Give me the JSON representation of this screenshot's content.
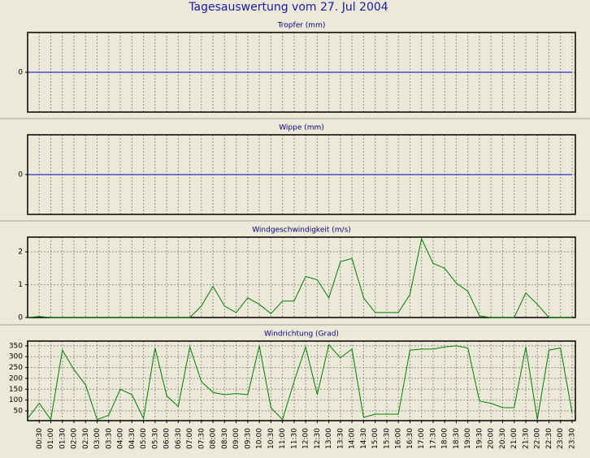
{
  "title": "Tagesauswertung vom 27. Jul 2004",
  "chart_data": [
    {
      "type": "line",
      "title": "Tropfer (mm)",
      "color": "#0000c0",
      "grid": true,
      "ylim": [
        -1,
        1
      ],
      "yticks": [
        0
      ],
      "values": [
        0,
        0,
        0,
        0,
        0,
        0,
        0,
        0,
        0,
        0,
        0,
        0,
        0,
        0,
        0,
        0,
        0,
        0,
        0,
        0,
        0,
        0,
        0,
        0,
        0,
        0,
        0,
        0,
        0,
        0,
        0,
        0,
        0,
        0,
        0,
        0,
        0,
        0,
        0,
        0,
        0,
        0,
        0,
        0,
        0,
        0,
        0,
        0
      ]
    },
    {
      "type": "line",
      "title": "Wippe (mm)",
      "color": "#0000c0",
      "grid": true,
      "ylim": [
        -1,
        1
      ],
      "yticks": [
        0
      ],
      "values": [
        0,
        0,
        0,
        0,
        0,
        0,
        0,
        0,
        0,
        0,
        0,
        0,
        0,
        0,
        0,
        0,
        0,
        0,
        0,
        0,
        0,
        0,
        0,
        0,
        0,
        0,
        0,
        0,
        0,
        0,
        0,
        0,
        0,
        0,
        0,
        0,
        0,
        0,
        0,
        0,
        0,
        0,
        0,
        0,
        0,
        0,
        0,
        0
      ]
    },
    {
      "type": "line",
      "title": "Windgeschwindigkeit (m/s)",
      "color": "#008000",
      "grid": true,
      "ylim": [
        0,
        2.45
      ],
      "yticks": [
        0,
        1,
        2
      ],
      "values": [
        0,
        0.03,
        0,
        0,
        0,
        0,
        0,
        0,
        0,
        0,
        0,
        0,
        0,
        0,
        0,
        0.35,
        0.95,
        0.35,
        0.15,
        0.6,
        0.4,
        0.12,
        0.5,
        0.5,
        1.25,
        1.15,
        0.6,
        1.7,
        1.8,
        0.6,
        0.15,
        0.15,
        0.15,
        0.7,
        2.4,
        1.65,
        1.5,
        1.05,
        0.8,
        0.05,
        0,
        0,
        0,
        0.75,
        0.4,
        0,
        0,
        0
      ]
    },
    {
      "type": "line",
      "title": "Windrichtung (Grad)",
      "color": "#008000",
      "grid": true,
      "ylim": [
        5,
        372
      ],
      "yticks": [
        50,
        100,
        150,
        200,
        250,
        300,
        350
      ],
      "values": [
        15,
        85,
        10,
        330,
        240,
        170,
        10,
        30,
        150,
        125,
        15,
        340,
        120,
        70,
        345,
        185,
        135,
        125,
        130,
        125,
        350,
        65,
        10,
        185,
        345,
        125,
        355,
        295,
        335,
        20,
        35,
        35,
        35,
        330,
        335,
        335,
        345,
        350,
        340,
        95,
        85,
        65,
        65,
        345,
        10,
        330,
        340,
        40
      ],
      "categories": [
        null,
        "00:30",
        "01:00",
        "01:30",
        "02:00",
        "02:30",
        "03:00",
        "03:30",
        "04:00",
        "04:30",
        "05:00",
        "05:30",
        "06:00",
        "06:30",
        "07:00",
        "07:30",
        "08:00",
        "08:30",
        "09:00",
        "09:30",
        "10:00",
        "10:30",
        "11:00",
        "11:30",
        "12:00",
        "12:30",
        "13:00",
        "13:30",
        "14:00",
        "14:30",
        "15:00",
        "15:30",
        "16:00",
        "16:30",
        "17:00",
        "17:30",
        "18:00",
        "18:30",
        "19:00",
        "19:30",
        "20:00",
        "20:30",
        "21:00",
        "21:30",
        "22:00",
        "22:30",
        "23:00",
        "23:30"
      ]
    }
  ]
}
